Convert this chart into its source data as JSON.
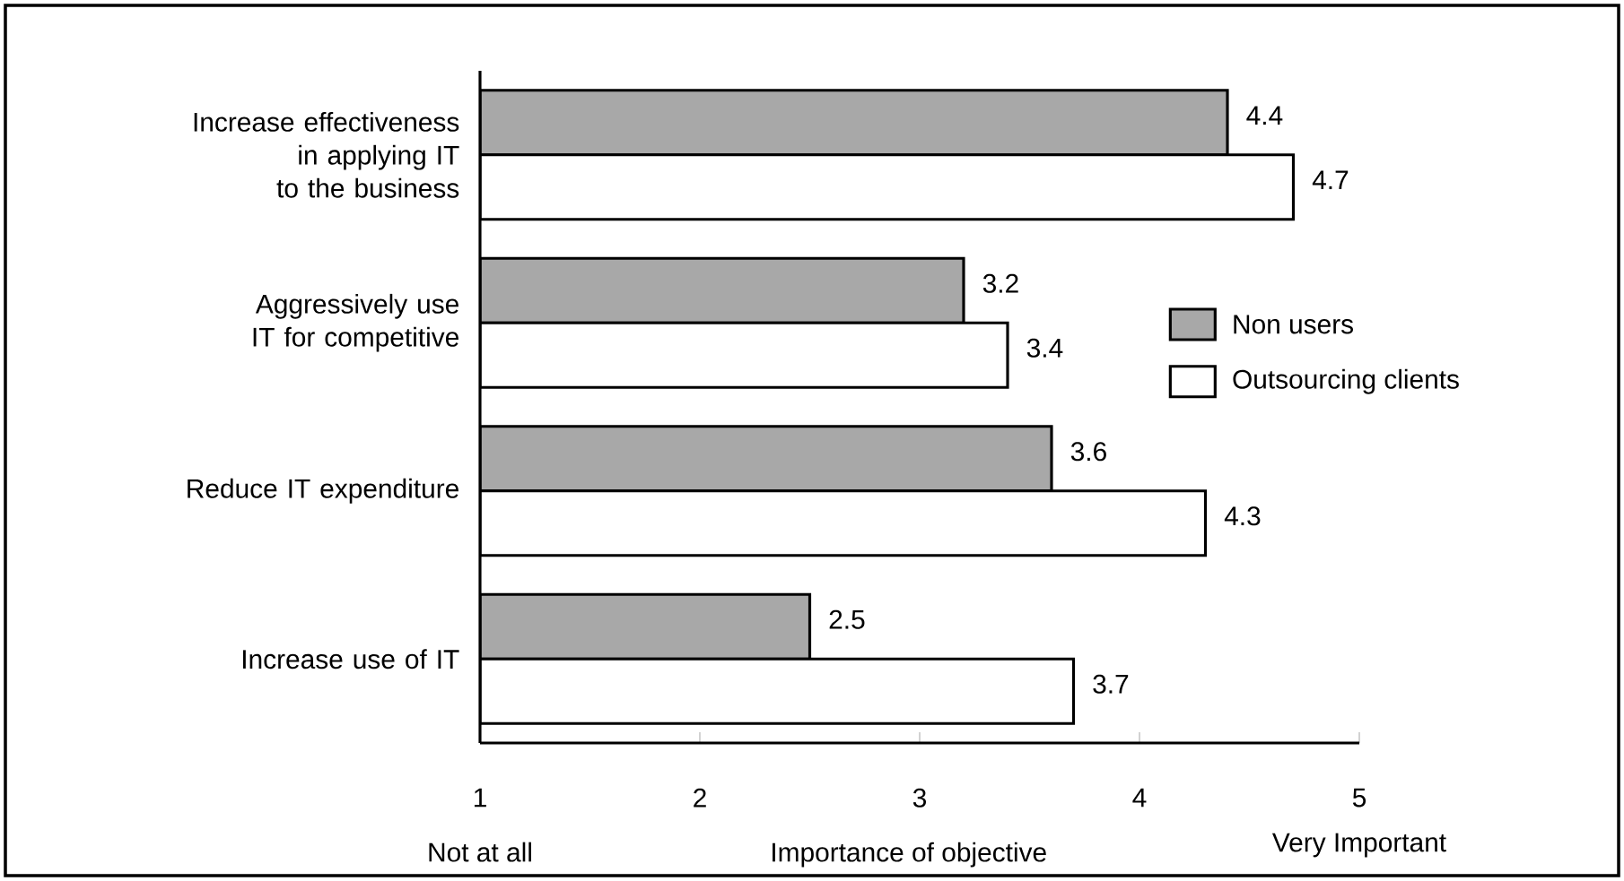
{
  "chart_data": {
    "type": "bar",
    "orientation": "horizontal",
    "categories": [
      "Increase effectiveness in applying IT to the business",
      "Aggressively use IT for competitive",
      "Reduce IT expenditure",
      "Increase use of IT"
    ],
    "series": [
      {
        "name": "Non users",
        "color": "#a8a8a8",
        "values": [
          4.4,
          3.2,
          3.6,
          2.5
        ]
      },
      {
        "name": "Outsourcing clients",
        "color": "#ffffff",
        "values": [
          4.7,
          3.4,
          4.3,
          3.7
        ]
      }
    ],
    "xlim": [
      1,
      5
    ],
    "xticks": [
      1,
      2,
      3,
      4,
      5
    ],
    "xlabel": "Importance of objective",
    "annotations": [
      "Not at all",
      "Very Important"
    ],
    "data_labels": true,
    "legend": "right",
    "grid": false
  }
}
